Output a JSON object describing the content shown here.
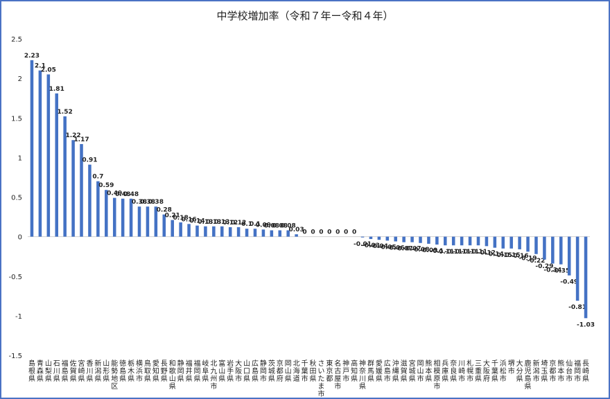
{
  "chart_data": {
    "type": "bar",
    "title": "中学校増加率（令和７年ー令和４年）",
    "ylim": [
      -1.5,
      2.5
    ],
    "yticks": [
      "2.5",
      "2",
      "1.5",
      "1",
      "0.5",
      "0",
      "-0.5",
      "-1",
      "-1.5"
    ],
    "grid": false,
    "bar_color": "#4472c4",
    "categories": [
      "島根県",
      "青森県",
      "山梨県",
      "石川県",
      "福島県",
      "佐賀県",
      "宮崎県",
      "香川県",
      "新潟県",
      "山形県",
      "能勢地区",
      "徳島県",
      "栃木県",
      "横浜市",
      "鳥取県",
      "愛知県",
      "長野県",
      "和歌山県",
      "静岡県",
      "福井県",
      "福岡県",
      "岐阜県",
      "北九州市",
      "富山県",
      "岩手県",
      "大阪市",
      "山口県",
      "広島県",
      "静岡市",
      "茨城県",
      "京都府",
      "岡山県",
      "北海道",
      "千葉市",
      "秋田県",
      "さいたま市",
      "東京都",
      "名古屋市",
      "神戸市",
      "高知県",
      "神奈川県",
      "群馬県",
      "愛媛県",
      "広島市",
      "沖縄県",
      "滋賀県",
      "宮城県",
      "岡山市",
      "熊本県",
      "相模原市",
      "兵庫県",
      "奈良県",
      "川崎市",
      "札幌市",
      "三重県",
      "大阪府",
      "千葉県",
      "浜松市",
      "堺市",
      "大分県",
      "鹿児島県",
      "新潟市",
      "埼玉県",
      "京都市",
      "熊本市",
      "仙台市",
      "福岡市",
      "長崎県"
    ],
    "values": [
      2.23,
      2.1,
      2.05,
      1.81,
      1.52,
      1.22,
      1.17,
      0.91,
      0.7,
      0.59,
      0.49,
      0.48,
      0.48,
      0.38,
      0.38,
      0.38,
      0.28,
      0.21,
      0.18,
      0.16,
      0.14,
      0.13,
      0.13,
      0.13,
      0.12,
      0.12,
      0.1,
      0.1,
      0.09,
      0.08,
      0.08,
      0.08,
      0.03,
      0,
      0,
      0,
      0,
      0,
      0,
      0,
      -0.01,
      -0.03,
      -0.04,
      -0.05,
      -0.06,
      -0.07,
      -0.07,
      -0.08,
      -0.09,
      -0.1,
      -0.11,
      -0.11,
      -0.11,
      -0.11,
      -0.11,
      -0.12,
      -0.14,
      -0.15,
      -0.15,
      -0.16,
      -0.19,
      -0.22,
      -0.29,
      -0.34,
      -0.35,
      -0.49,
      -0.81,
      -1.03
    ],
    "data_labels": [
      "2.23",
      "2.1",
      "2.05",
      "1.81",
      "1.52",
      "1.22",
      "1.17",
      "0.91",
      "0.7",
      "0.59",
      "0.49",
      "0.48",
      "0.48",
      "0.38",
      "0.38",
      "0.38",
      "0.28",
      "0.21",
      "0.18",
      "0.16",
      "0.14",
      "0.13",
      "0.13",
      "0.13",
      "0.12",
      "0.12",
      "0.1",
      "0.1",
      "0.09",
      "0.08",
      "0.08",
      "0.08",
      "0.03",
      "0",
      "0",
      "0",
      "0",
      "0",
      "0",
      "0",
      "-0.01",
      "-0.03",
      "-0.04",
      "-0.05",
      "-0.06",
      "-0.07",
      "-0.07",
      "-0.08",
      "-0.09",
      "-0.1",
      "-0.11",
      "-0.11",
      "-0.11",
      "-0.11",
      "-0.11",
      "-0.12",
      "-0.14",
      "-0.15",
      "-0.15",
      "-0.16",
      "-0.19",
      "-0.22",
      "-0.29",
      "-0.34",
      "-0.35",
      "-0.49",
      "-0.81",
      "-1.03"
    ]
  }
}
